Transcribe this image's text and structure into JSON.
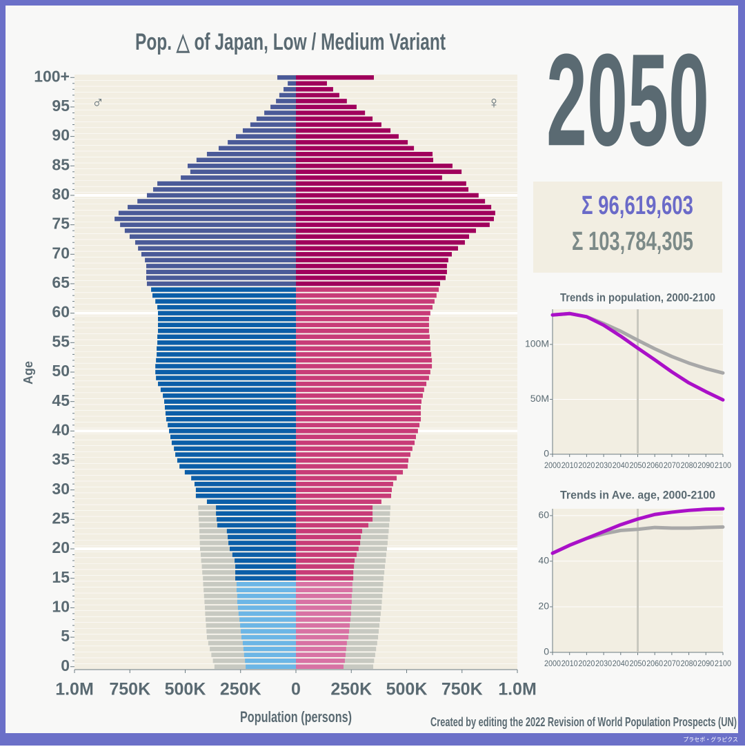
{
  "year": 2050,
  "totals": [
    "Σ 96,619,603",
    "Σ 103,784,305"
  ],
  "credit": "Created by editing the 2022 Revision of World Population Prospects (UN)",
  "watermark": "プラセボ・グラピクス",
  "chart_data": [
    {
      "type": "pyramid",
      "title": "Pop. △ of Japan, Low / Medium Variant",
      "x_label": "Population (persons)",
      "y_label": "Age",
      "categories": [
        "0",
        null,
        null,
        null,
        null,
        "5",
        null,
        null,
        null,
        null,
        "10",
        null,
        null,
        null,
        null,
        "15",
        null,
        null,
        null,
        null,
        "20",
        null,
        null,
        null,
        null,
        "25",
        null,
        null,
        null,
        null,
        "30",
        null,
        null,
        null,
        null,
        "35",
        null,
        null,
        null,
        null,
        "40",
        null,
        null,
        null,
        null,
        "45",
        null,
        null,
        null,
        null,
        "50",
        null,
        null,
        null,
        null,
        "55",
        null,
        null,
        null,
        null,
        "60",
        null,
        null,
        null,
        null,
        "65",
        null,
        null,
        null,
        null,
        "70",
        null,
        null,
        null,
        null,
        "75",
        null,
        null,
        null,
        null,
        "80",
        null,
        null,
        null,
        null,
        "85",
        null,
        null,
        null,
        null,
        "90",
        null,
        null,
        null,
        null,
        "95",
        null,
        null,
        null,
        null,
        "100+"
      ],
      "xlim": [
        -1000000,
        1000000
      ],
      "xticks": [
        {
          "value": -1000000,
          "label": "1.0M"
        },
        {
          "value": -750000,
          "label": "750K"
        },
        {
          "value": -500000,
          "label": "500K"
        },
        {
          "value": -250000,
          "label": "250K"
        },
        0,
        {
          "value": 250000,
          "label": "250K"
        },
        {
          "value": 500000,
          "label": "500K"
        },
        {
          "value": 750000,
          "label": "750K"
        },
        {
          "value": 1000000,
          "label": "1.0M"
        }
      ],
      "series": [
        {
          "side": "left",
          "color": "#c7c9c1",
          "values": [
            368000,
            375000,
            382000,
            389000,
            396000,
            402000,
            404000,
            406000,
            408000,
            410000,
            411000,
            413000,
            415000,
            417000,
            419000,
            420000,
            423000,
            425000,
            428000,
            430000,
            433000,
            434000,
            435000,
            436000,
            437000,
            439000,
            440000,
            442000,
            null,
            null,
            null,
            null,
            null,
            null,
            null,
            null,
            null,
            null,
            null,
            null,
            null,
            null,
            null,
            null,
            null,
            null,
            null,
            null,
            null,
            null,
            null,
            null,
            null,
            null,
            null,
            null,
            null,
            null,
            null,
            null,
            null,
            null,
            null,
            null,
            null,
            null,
            null,
            null,
            null,
            null,
            null,
            null,
            null,
            null,
            null,
            null,
            null,
            null,
            null,
            null,
            null,
            null,
            null,
            null,
            null,
            null,
            null,
            null,
            null,
            null,
            null,
            null,
            null,
            null,
            null,
            null,
            null,
            null,
            null,
            null,
            null
          ]
        },
        {
          "side": "right",
          "color": "#c7c9c1",
          "values": [
            349000,
            353000,
            358000,
            362000,
            367000,
            371000,
            374000,
            377000,
            380000,
            383000,
            386000,
            388000,
            390000,
            392000,
            394000,
            396000,
            399000,
            402000,
            405000,
            408000,
            411000,
            414000,
            416000,
            419000,
            421000,
            424000,
            425000,
            427000,
            null,
            null,
            null,
            null,
            null,
            null,
            null,
            null,
            null,
            null,
            null,
            null,
            null,
            null,
            null,
            null,
            null,
            null,
            null,
            null,
            null,
            null,
            null,
            null,
            null,
            null,
            null,
            null,
            null,
            null,
            null,
            null,
            null,
            null,
            null,
            null,
            null,
            null,
            null,
            null,
            null,
            null,
            null,
            null,
            null,
            null,
            null,
            null,
            null,
            null,
            null,
            null,
            null,
            null,
            null,
            null,
            null,
            null,
            null,
            null,
            null,
            null,
            null,
            null,
            null,
            null,
            null,
            null,
            null,
            null,
            null,
            null,
            null
          ]
        },
        {
          "name": "♂",
          "side": "left",
          "values": [
            227000,
            230000,
            234000,
            237000,
            240000,
            246000,
            249000,
            252000,
            255000,
            259000,
            262000,
            265000,
            265000,
            268000,
            268000,
            274000,
            274000,
            274000,
            277000,
            287000,
            299000,
            305000,
            308000,
            312000,
            355000,
            358000,
            361000,
            361000,
            402000,
            452000,
            452000,
            458000,
            473000,
            502000,
            526000,
            536000,
            545000,
            551000,
            561000,
            567000,
            573000,
            579000,
            586000,
            589000,
            592000,
            595000,
            601000,
            611000,
            623000,
            632000,
            635000,
            635000,
            632000,
            629000,
            629000,
            626000,
            626000,
            623000,
            623000,
            623000,
            623000,
            626000,
            635000,
            648000,
            654000,
            673000,
            676000,
            676000,
            676000,
            682000,
            698000,
            713000,
            726000,
            751000,
            773000,
            794000,
            819000,
            801000,
            760000,
            716000,
            673000,
            645000,
            626000,
            520000,
            477000,
            489000,
            449000,
            402000,
            349000,
            308000,
            271000,
            240000,
            206000,
            178000,
            143000,
            115000,
            90000,
            75000,
            56000,
            37000,
            84000
          ],
          "colors": [
            "#6cb6e6",
            "#6cb6e6",
            "#6cb6e6",
            "#6cb6e6",
            "#6cb6e6",
            "#6cb6e6",
            "#6cb6e6",
            "#6cb6e6",
            "#6cb6e6",
            "#6cb6e6",
            "#6cb6e6",
            "#6cb6e6",
            "#6cb6e6",
            "#6cb6e6",
            "#6cb6e6",
            "#0b5ea8",
            "#0b5ea8",
            "#0b5ea8",
            "#0b5ea8",
            "#0b5ea8",
            "#0b5ea8",
            "#0b5ea8",
            "#0b5ea8",
            "#0b5ea8",
            "#0b5ea8",
            "#0b5ea8",
            "#0b5ea8",
            "#0b5ea8",
            "#0b5ea8",
            "#0b5ea8",
            "#0b5ea8",
            "#0b5ea8",
            "#0b5ea8",
            "#0b5ea8",
            "#0b5ea8",
            "#0b5ea8",
            "#0b5ea8",
            "#0b5ea8",
            "#0b5ea8",
            "#0b5ea8",
            "#0b5ea8",
            "#0b5ea8",
            "#0b5ea8",
            "#0b5ea8",
            "#0b5ea8",
            "#0b5ea8",
            "#0b5ea8",
            "#0b5ea8",
            "#0b5ea8",
            "#0b5ea8",
            "#0b5ea8",
            "#0b5ea8",
            "#0b5ea8",
            "#0b5ea8",
            "#0b5ea8",
            "#0b5ea8",
            "#0b5ea8",
            "#0b5ea8",
            "#0b5ea8",
            "#0b5ea8",
            "#0b5ea8",
            "#0b5ea8",
            "#0b5ea8",
            "#0b5ea8",
            "#0b5ea8",
            "#4a5a98",
            "#4a5a98",
            "#4a5a98",
            "#4a5a98",
            "#4a5a98",
            "#4a5a98",
            "#4a5a98",
            "#4a5a98",
            "#4a5a98",
            "#4a5a98",
            "#4a5a98",
            "#4a5a98",
            "#4a5a98",
            "#4a5a98",
            "#4a5a98",
            "#4a5a98",
            "#4a5a98",
            "#4a5a98",
            "#4a5a98",
            "#4a5a98",
            "#4a5a98",
            "#4a5a98",
            "#4a5a98",
            "#4a5a98",
            "#4a5a98",
            "#4a5a98",
            "#4a5a98",
            "#4a5a98",
            "#4a5a98",
            "#4a5a98",
            "#4a5a98",
            "#4a5a98",
            "#4a5a98",
            "#4a5a98",
            "#4a5a98",
            "#4a5a98"
          ]
        },
        {
          "name": "♀",
          "side": "right",
          "values": [
            215000,
            221000,
            224000,
            227000,
            230000,
            237000,
            240000,
            243000,
            246000,
            249000,
            249000,
            252000,
            252000,
            255000,
            255000,
            259000,
            259000,
            262000,
            265000,
            274000,
            283000,
            290000,
            293000,
            299000,
            327000,
            346000,
            346000,
            346000,
            386000,
            430000,
            433000,
            439000,
            455000,
            483000,
            505000,
            508000,
            517000,
            526000,
            536000,
            542000,
            551000,
            558000,
            564000,
            564000,
            564000,
            567000,
            573000,
            579000,
            589000,
            601000,
            607000,
            614000,
            614000,
            611000,
            607000,
            607000,
            604000,
            601000,
            601000,
            601000,
            607000,
            617000,
            626000,
            635000,
            645000,
            651000,
            676000,
            682000,
            682000,
            688000,
            704000,
            732000,
            763000,
            782000,
            813000,
            875000,
            894000,
            900000,
            882000,
            854000,
            825000,
            779000,
            769000,
            660000,
            748000,
            707000,
            620000,
            617000,
            533000,
            505000,
            464000,
            427000,
            386000,
            346000,
            312000,
            274000,
            230000,
            196000,
            168000,
            140000,
            352000
          ],
          "colors": [
            "#d872a4",
            "#d872a4",
            "#d872a4",
            "#d872a4",
            "#d872a4",
            "#d872a4",
            "#d872a4",
            "#d872a4",
            "#d872a4",
            "#d872a4",
            "#d872a4",
            "#d872a4",
            "#d872a4",
            "#d872a4",
            "#d872a4",
            "#c83c78",
            "#c83c78",
            "#c83c78",
            "#c83c78",
            "#c83c78",
            "#c83c78",
            "#c83c78",
            "#c83c78",
            "#c83c78",
            "#c83c78",
            "#c83c78",
            "#c83c78",
            "#c83c78",
            "#c83c78",
            "#c83c78",
            "#c83c78",
            "#c83c78",
            "#c83c78",
            "#c83c78",
            "#c83c78",
            "#c83c78",
            "#c83c78",
            "#c83c78",
            "#c83c78",
            "#c83c78",
            "#c83c78",
            "#c83c78",
            "#c83c78",
            "#c83c78",
            "#c83c78",
            "#c83c78",
            "#c83c78",
            "#c83c78",
            "#c83c78",
            "#c83c78",
            "#c83c78",
            "#c83c78",
            "#c83c78",
            "#c83c78",
            "#c83c78",
            "#c83c78",
            "#c83c78",
            "#c83c78",
            "#c83c78",
            "#c83c78",
            "#c83c78",
            "#c83c78",
            "#c83c78",
            "#c83c78",
            "#c83c78",
            "#a0005c",
            "#a0005c",
            "#a0005c",
            "#a0005c",
            "#a0005c",
            "#a0005c",
            "#a0005c",
            "#a0005c",
            "#a0005c",
            "#a0005c",
            "#a0005c",
            "#a0005c",
            "#a0005c",
            "#a0005c",
            "#a0005c",
            "#a0005c",
            "#a0005c",
            "#a0005c",
            "#a0005c",
            "#a0005c",
            "#a0005c",
            "#a0005c",
            "#a0005c",
            "#a0005c",
            "#a0005c",
            "#a0005c",
            "#a0005c",
            "#a0005c",
            "#a0005c",
            "#a0005c",
            "#a0005c",
            "#a0005c",
            "#a0005c",
            "#a0005c",
            "#a0005c",
            "#a0005c"
          ]
        }
      ]
    },
    {
      "type": "line",
      "title": "Trends in population, 2000-2100",
      "x": [
        2000,
        2010,
        2020,
        2030,
        2040,
        2050,
        2060,
        2070,
        2080,
        2090,
        2100
      ],
      "xlim": [
        2000,
        2100
      ],
      "xticks": [
        2000,
        2010,
        2020,
        2030,
        2040,
        2050,
        2060,
        2070,
        2080,
        2090,
        2100
      ],
      "ylim": [
        0,
        132000000
      ],
      "yticks": [
        0,
        {
          "value": 50000000,
          "label": "50M"
        },
        {
          "value": 100000000,
          "label": "100M"
        }
      ],
      "series": [
        {
          "color": "#a8a8a8",
          "values": [
            126800000,
            128100000,
            125200000,
            119000000,
            112000000,
            103784305,
            96000000,
            89000000,
            83000000,
            78000000,
            74000000
          ]
        },
        {
          "color": "#aa10c8",
          "values": [
            126800000,
            128100000,
            125200000,
            117500000,
            107500000,
            96619603,
            86000000,
            75000000,
            65000000,
            57000000,
            49500000
          ]
        }
      ]
    },
    {
      "type": "line",
      "title": "Trends in Ave. age, 2000-2100",
      "x": [
        2000,
        2010,
        2020,
        2030,
        2040,
        2050,
        2060,
        2070,
        2080,
        2090,
        2100
      ],
      "xlim": [
        2000,
        2100
      ],
      "xticks": [
        2000,
        2010,
        2020,
        2030,
        2040,
        2050,
        2060,
        2070,
        2080,
        2090,
        2100
      ],
      "ylim": [
        0,
        63
      ],
      "yticks": [
        0,
        20,
        40,
        60
      ],
      "series": [
        {
          "color": "#a8a8a8",
          "values": [
            43.5,
            47,
            50,
            52,
            53.5,
            54,
            54.8,
            54.5,
            54.5,
            54.8,
            55
          ]
        },
        {
          "color": "#aa10c8",
          "values": [
            43.5,
            47,
            50,
            53,
            56,
            58.5,
            60.5,
            61.5,
            62.3,
            62.8,
            63
          ]
        }
      ]
    }
  ]
}
